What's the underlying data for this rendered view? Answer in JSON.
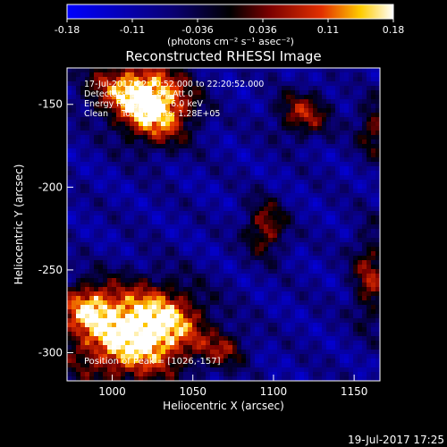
{
  "chart_data": {
    "type": "heatmap",
    "title": "Reconstructed RHESSI Image",
    "xlabel": "Heliocentric X (arcsec)",
    "ylabel": "Heliocentric Y (arcsec)",
    "xlim": [
      972,
      1166
    ],
    "ylim": [
      -317,
      -128
    ],
    "x_ticks": [
      1000,
      1050,
      1100,
      1150
    ],
    "y_ticks": [
      -150,
      -200,
      -250,
      -300
    ],
    "colorbar": {
      "min": -0.18,
      "max": 0.18,
      "ticks": [
        "-0.18",
        "-0.11",
        "-0.036",
        "0.036",
        "0.11",
        "0.18"
      ],
      "unit_label": "(photons cm⁻² s⁻¹ asec⁻²)",
      "colors": [
        "#0000ff",
        "#0a0070",
        "#000000",
        "#7a0000",
        "#e23000",
        "#ffcc00",
        "#ffffff"
      ]
    },
    "annotations": [
      "17-Jul-2017 22:10:52.000 to 22:20:52.000",
      "Detectors: 3F 6F 8F, Att 0",
      "Energy Range: 3.0 - 6.0 keV",
      "Clean     Total counts: 1.28E+05"
    ],
    "peak_label": "Position of Peak = [1026,-157]",
    "sources": [
      {
        "x": 1027,
        "y": -155,
        "value": 0.18,
        "sx": 16,
        "sy": 14
      },
      {
        "x": 1012,
        "y": -140,
        "value": 0.13,
        "sx": 20,
        "sy": 12
      },
      {
        "x": 1005,
        "y": -292,
        "value": 0.15,
        "sx": 26,
        "sy": 20
      },
      {
        "x": 1030,
        "y": -282,
        "value": 0.13,
        "sx": 20,
        "sy": 16
      },
      {
        "x": 985,
        "y": -272,
        "value": 0.09,
        "sx": 12,
        "sy": 10
      },
      {
        "x": 1095,
        "y": -225,
        "value": 0.08,
        "sx": 9,
        "sy": 12
      },
      {
        "x": 1118,
        "y": -156,
        "value": 0.08,
        "sx": 12,
        "sy": 10
      },
      {
        "x": 1160,
        "y": -255,
        "value": 0.07,
        "sx": 8,
        "sy": 20
      },
      {
        "x": 1163,
        "y": -165,
        "value": 0.06,
        "sx": 8,
        "sy": 12
      },
      {
        "x": 1070,
        "y": -298,
        "value": 0.04,
        "sx": 10,
        "sy": 8
      }
    ],
    "background_level": -0.09
  },
  "footer": {
    "timestamp": "19-Jul-2017 17:25"
  }
}
